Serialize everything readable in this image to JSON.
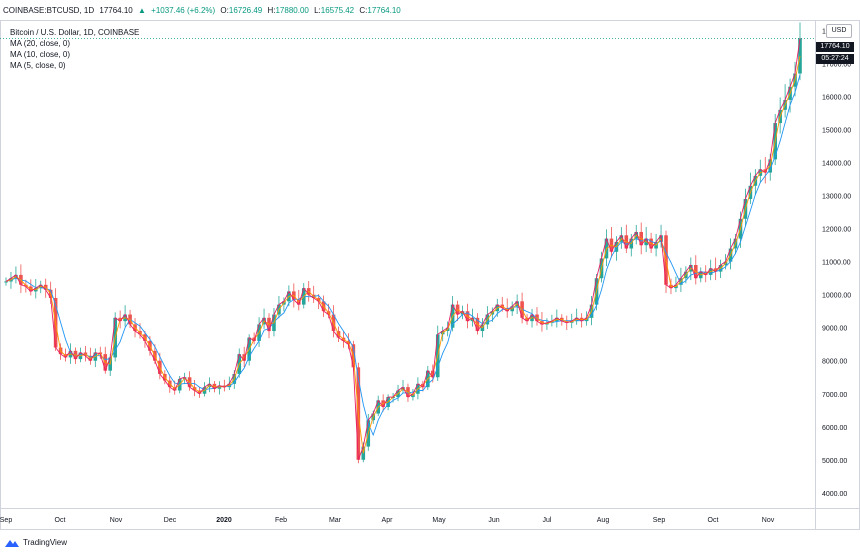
{
  "header": {
    "symbol": "COINBASE:BTCUSD, 1D",
    "last": "17764.10",
    "change_arrow": "▲",
    "change": "+1037.46 (+6.2%)",
    "open_label": "O:",
    "open": "16726.49",
    "high_label": "H:",
    "high": "17880.00",
    "low_label": "L:",
    "low": "16575.42",
    "close_label": "C:",
    "close": "17764.10"
  },
  "legend": {
    "title": "Bitcoin / U.S. Dollar, 1D, COINBASE",
    "ma20": "MA (20, close, 0)",
    "ma10": "MA (10, close, 0)",
    "ma5": "MA (5, close, 0)"
  },
  "currency_button": "USD",
  "price_badge": "17764.10",
  "timer_badge": "05:27:24",
  "footer": {
    "brand": "TradingView"
  },
  "colors": {
    "up": "#26a69a",
    "down": "#ef5350",
    "ma5": "#e91e63",
    "ma10": "#ff9800",
    "ma20": "#2196f3",
    "text": "#131722",
    "positive_text": "#089981"
  },
  "chart_data": {
    "type": "candlestick",
    "x_ticks": [
      "Sep",
      "Oct",
      "Nov",
      "Dec",
      "2020",
      "Feb",
      "Mar",
      "Apr",
      "May",
      "Jun",
      "Jul",
      "Aug",
      "Sep",
      "Oct",
      "Nov"
    ],
    "y_ticks": [
      18000,
      17000,
      16000,
      15000,
      14000,
      13000,
      12000,
      11000,
      10000,
      9000,
      8000,
      7000,
      6000,
      5000,
      4000
    ],
    "ylim": [
      3600,
      18200
    ],
    "price_line": 17764.1,
    "close_series": [
      [
        0,
        10400
      ],
      [
        5,
        10500
      ],
      [
        10,
        10600
      ],
      [
        15,
        10300
      ],
      [
        20,
        10250
      ],
      [
        25,
        10100
      ],
      [
        30,
        10200
      ],
      [
        35,
        10300
      ],
      [
        40,
        10150
      ],
      [
        45,
        9900
      ],
      [
        50,
        8400
      ],
      [
        55,
        8200
      ],
      [
        60,
        8100
      ],
      [
        65,
        8300
      ],
      [
        70,
        8050
      ],
      [
        75,
        8250
      ],
      [
        80,
        8150
      ],
      [
        85,
        8000
      ],
      [
        90,
        8250
      ],
      [
        95,
        8200
      ],
      [
        100,
        7700
      ],
      [
        105,
        8100
      ],
      [
        110,
        9300
      ],
      [
        115,
        9200
      ],
      [
        120,
        9400
      ],
      [
        125,
        9100
      ],
      [
        130,
        8900
      ],
      [
        135,
        8800
      ],
      [
        140,
        8600
      ],
      [
        145,
        8300
      ],
      [
        150,
        8000
      ],
      [
        155,
        7600
      ],
      [
        160,
        7400
      ],
      [
        165,
        7200
      ],
      [
        170,
        7100
      ],
      [
        175,
        7450
      ],
      [
        180,
        7500
      ],
      [
        185,
        7200
      ],
      [
        190,
        7100
      ],
      [
        195,
        7000
      ],
      [
        200,
        7200
      ],
      [
        205,
        7300
      ],
      [
        210,
        7150
      ],
      [
        215,
        7250
      ],
      [
        220,
        7200
      ],
      [
        225,
        7300
      ],
      [
        230,
        7600
      ],
      [
        235,
        8200
      ],
      [
        240,
        8000
      ],
      [
        245,
        8700
      ],
      [
        250,
        8600
      ],
      [
        255,
        9100
      ],
      [
        260,
        9300
      ],
      [
        265,
        8900
      ],
      [
        270,
        9400
      ],
      [
        275,
        9700
      ],
      [
        280,
        9800
      ],
      [
        285,
        10100
      ],
      [
        290,
        9850
      ],
      [
        295,
        9700
      ],
      [
        300,
        10200
      ],
      [
        305,
        10000
      ],
      [
        310,
        9900
      ],
      [
        315,
        9800
      ],
      [
        320,
        9500
      ],
      [
        325,
        9400
      ],
      [
        330,
        8900
      ],
      [
        335,
        8700
      ],
      [
        340,
        8600
      ],
      [
        345,
        8500
      ],
      [
        350,
        7800
      ],
      [
        355,
        5000
      ],
      [
        360,
        5400
      ],
      [
        365,
        6200
      ],
      [
        370,
        6400
      ],
      [
        375,
        6800
      ],
      [
        380,
        6600
      ],
      [
        385,
        6900
      ],
      [
        390,
        6900
      ],
      [
        395,
        7100
      ],
      [
        400,
        7200
      ],
      [
        405,
        6900
      ],
      [
        410,
        7000
      ],
      [
        415,
        7300
      ],
      [
        420,
        7200
      ],
      [
        425,
        7700
      ],
      [
        430,
        7500
      ],
      [
        435,
        8800
      ],
      [
        440,
        8900
      ],
      [
        445,
        9000
      ],
      [
        450,
        9700
      ],
      [
        455,
        9400
      ],
      [
        460,
        9500
      ],
      [
        465,
        9200
      ],
      [
        470,
        9300
      ],
      [
        475,
        8900
      ],
      [
        480,
        9100
      ],
      [
        485,
        9400
      ],
      [
        490,
        9500
      ],
      [
        495,
        9700
      ],
      [
        500,
        9600
      ],
      [
        505,
        9500
      ],
      [
        510,
        9650
      ],
      [
        515,
        9800
      ],
      [
        520,
        9300
      ],
      [
        525,
        9200
      ],
      [
        530,
        9400
      ],
      [
        535,
        9200
      ],
      [
        540,
        9100
      ],
      [
        545,
        9150
      ],
      [
        550,
        9200
      ],
      [
        555,
        9300
      ],
      [
        560,
        9200
      ],
      [
        565,
        9150
      ],
      [
        570,
        9200
      ],
      [
        575,
        9300
      ],
      [
        580,
        9200
      ],
      [
        585,
        9300
      ],
      [
        590,
        9700
      ],
      [
        595,
        10500
      ],
      [
        600,
        11100
      ],
      [
        605,
        11700
      ],
      [
        610,
        11300
      ],
      [
        615,
        11600
      ],
      [
        620,
        11800
      ],
      [
        625,
        11400
      ],
      [
        630,
        11700
      ],
      [
        635,
        11900
      ],
      [
        640,
        11500
      ],
      [
        645,
        11700
      ],
      [
        650,
        11400
      ],
      [
        655,
        11600
      ],
      [
        660,
        11800
      ],
      [
        665,
        10300
      ],
      [
        670,
        10200
      ],
      [
        675,
        10300
      ],
      [
        680,
        10500
      ],
      [
        685,
        10700
      ],
      [
        690,
        10900
      ],
      [
        695,
        10500
      ],
      [
        700,
        10700
      ],
      [
        705,
        10600
      ],
      [
        710,
        10800
      ],
      [
        715,
        10700
      ],
      [
        720,
        10900
      ],
      [
        725,
        11000
      ],
      [
        730,
        11400
      ],
      [
        735,
        11700
      ],
      [
        740,
        12300
      ],
      [
        745,
        12900
      ],
      [
        750,
        13300
      ],
      [
        755,
        13600
      ],
      [
        760,
        13800
      ],
      [
        765,
        13700
      ],
      [
        770,
        14100
      ],
      [
        775,
        15200
      ],
      [
        780,
        15600
      ],
      [
        785,
        15900
      ],
      [
        790,
        16300
      ],
      [
        795,
        16700
      ],
      [
        800,
        17764.1
      ]
    ]
  }
}
